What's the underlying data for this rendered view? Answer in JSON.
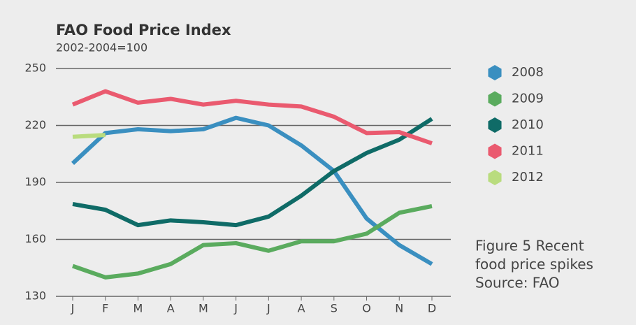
{
  "chart_data": {
    "type": "line",
    "title": "FAO Food Price Index",
    "subtitle": "2002-2004=100",
    "categories": [
      "J",
      "F",
      "M",
      "A",
      "M",
      "J",
      "J",
      "A",
      "S",
      "O",
      "N",
      "D"
    ],
    "series": [
      {
        "name": "2008",
        "color": "#3a8fc0",
        "values": [
          200,
          216,
          218,
          217,
          218,
          224,
          220,
          209.5,
          196,
          171,
          157,
          147
        ]
      },
      {
        "name": "2009",
        "color": "#5aab5e",
        "values": [
          146,
          140,
          142,
          147,
          157,
          158,
          154,
          159,
          159,
          163,
          174,
          177.5
        ]
      },
      {
        "name": "2010",
        "color": "#0f6b67",
        "values": [
          178.6,
          175.6,
          167.5,
          170,
          169,
          167.5,
          172,
          183,
          196,
          205.5,
          212.5,
          223.5
        ]
      },
      {
        "name": "2011",
        "color": "#ea5a6f",
        "values": [
          231,
          238,
          232,
          234,
          231,
          233,
          231,
          230,
          224.6,
          216,
          216.5,
          210.6
        ]
      },
      {
        "name": "2012",
        "color": "#b9dc7e",
        "values": [
          214,
          215,
          null,
          null,
          null,
          null,
          null,
          null,
          null,
          null,
          null,
          null
        ]
      }
    ],
    "ylim": [
      130,
      250
    ],
    "yticks": [
      130,
      160,
      190,
      220,
      250
    ],
    "grid": true,
    "legend": "right",
    "annotation": [
      "Figure 5 Recent",
      "food price spikes",
      "Source: FAO"
    ]
  }
}
